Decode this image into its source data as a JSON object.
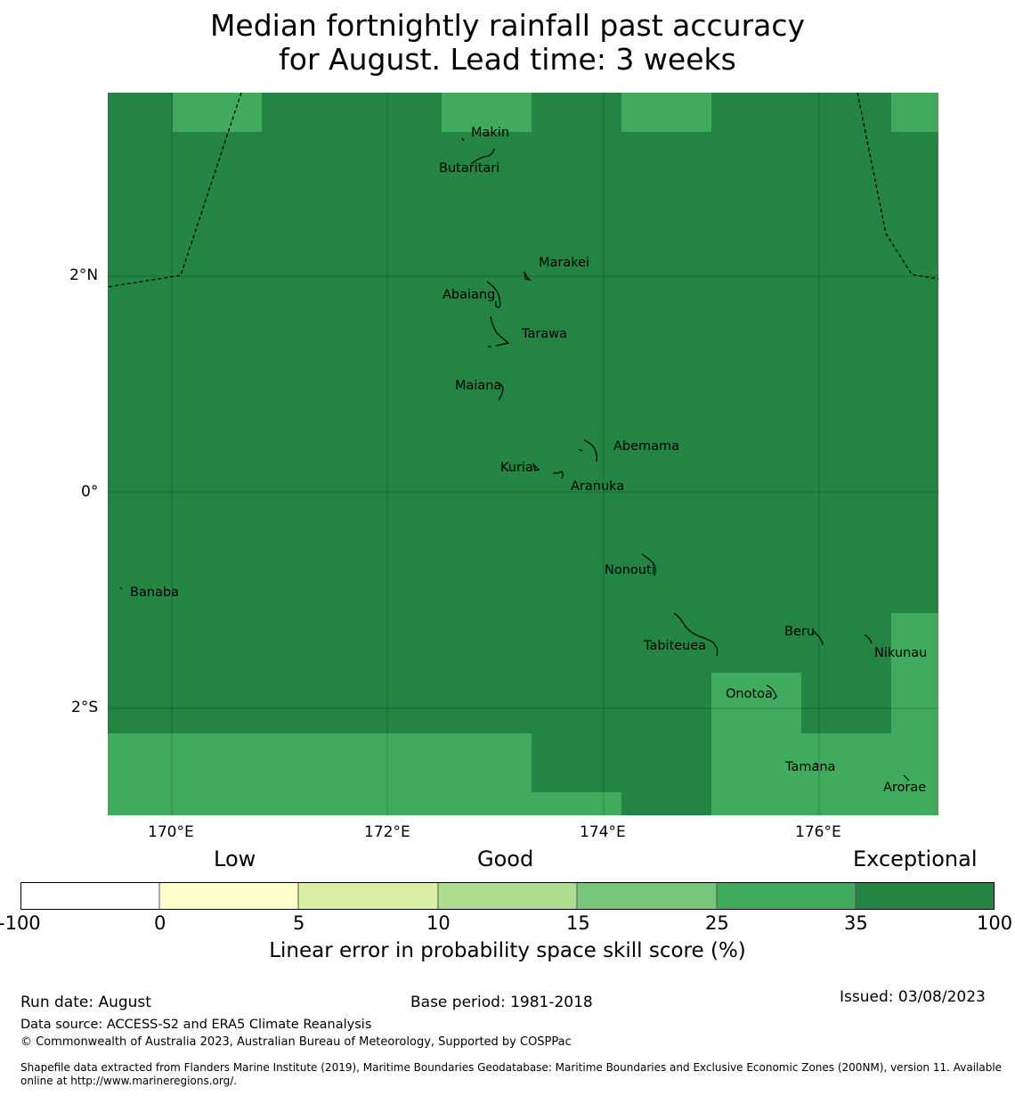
{
  "title_line1": "Median fortnightly rainfall past accuracy",
  "title_line2": "for August. Lead time: 3 weeks",
  "colors": {
    "exceptional": "#238443",
    "very_good": "#41ab5d",
    "good_high": "#78c679",
    "good": "#addd8e",
    "low_mid": "#d9f0a3",
    "low": "#ffffcc",
    "none": "#ffffff"
  },
  "map": {
    "lat_labels": [
      "2°N",
      "0°",
      "2°S"
    ],
    "lon_labels": [
      "170°E",
      "172°E",
      "174°E",
      "176°E"
    ],
    "places": [
      "Makin",
      "Butaritari",
      "Marakei",
      "Abaiang",
      "Tarawa",
      "Maiana",
      "Abemama",
      "Kuria",
      "Aranuka",
      "Nonouti",
      "Banaba",
      "Tabiteuea",
      "Beru",
      "Nikunau",
      "Onotoa",
      "Tamana",
      "Arorae"
    ]
  },
  "legend": {
    "categories": [
      "Low",
      "Good",
      "Exceptional"
    ],
    "ticks": [
      "-100",
      "0",
      "5",
      "10",
      "15",
      "25",
      "35",
      "100"
    ],
    "label": "Linear error in probability space skill score (%)"
  },
  "footer": {
    "run_date": "Run date: August",
    "base_period": "Base period: 1981-2018",
    "issued": "Issued: 03/08/2023",
    "data_source": "Data source: ACCESS-S2 and ERA5 Climate Reanalysis",
    "copyright": "© Commonwealth of Australia 2023, Australian Bureau of Meteorology, Supported by COSPPac",
    "shapefile_line1": "Shapefile data extracted from Flanders Marine Institute (2019), Maritime Boundaries Geodatabase: Maritime Boundaries and Exclusive Economic Zones (200NM), version 11. Available",
    "shapefile_line2": "online at http://www.marineregions.org/."
  }
}
